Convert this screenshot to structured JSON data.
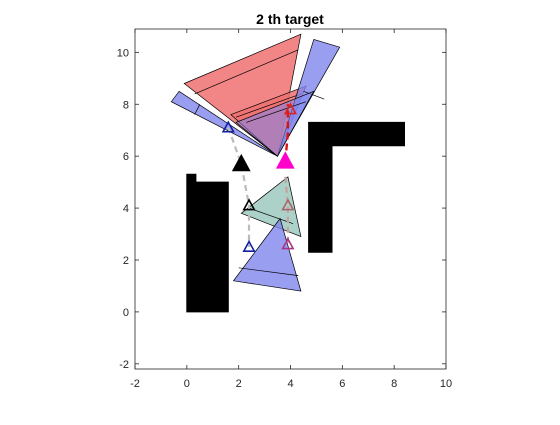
{
  "chart_data": {
    "type": "scatter",
    "title": "2 th target",
    "xlabel": "",
    "ylabel": "",
    "xlim": [
      -2,
      10
    ],
    "ylim": [
      -2.2,
      10.9
    ],
    "xticks": [
      "-2",
      "0",
      "2",
      "4",
      "6",
      "8",
      "10"
    ],
    "yticks": [
      "-2",
      "0",
      "2",
      "4",
      "6",
      "8",
      "10"
    ],
    "xtick_values": [
      -2,
      0,
      2,
      4,
      6,
      8,
      10
    ],
    "ytick_values": [
      -2,
      0,
      2,
      4,
      6,
      8,
      10
    ],
    "grid": false,
    "obstacles": [
      {
        "name": "left-wall",
        "points": [
          [
            0,
            0
          ],
          [
            1.6,
            0
          ],
          [
            1.6,
            5
          ],
          [
            0.35,
            5
          ],
          [
            0.35,
            5.3
          ],
          [
            0,
            5.3
          ]
        ]
      },
      {
        "name": "right-L-vertical",
        "points": [
          [
            4.7,
            2.3
          ],
          [
            5.6,
            2.3
          ],
          [
            5.6,
            7.3
          ],
          [
            4.7,
            7.3
          ]
        ]
      },
      {
        "name": "right-L-horizontal",
        "points": [
          [
            5.6,
            6.4
          ],
          [
            8.4,
            6.4
          ],
          [
            8.4,
            7.3
          ],
          [
            5.6,
            7.3
          ]
        ]
      }
    ],
    "sensor_cones": [
      {
        "name": "red-upper",
        "fill": "#f07070",
        "opacity": 0.85,
        "points": [
          [
            3.5,
            6.0
          ],
          [
            -0.1,
            8.8
          ],
          [
            4.4,
            10.7
          ]
        ],
        "inner": [
          [
            0.3,
            8.4
          ],
          [
            4.3,
            10.1
          ]
        ]
      },
      {
        "name": "red-lower",
        "fill": "#f07070",
        "opacity": 0.85,
        "points": [
          [
            3.5,
            6.0
          ],
          [
            1.7,
            7.6
          ],
          [
            4.6,
            8.7
          ]
        ],
        "inner": [
          [
            1.9,
            7.5
          ],
          [
            4.4,
            8.4
          ]
        ]
      },
      {
        "name": "blue-left-arm",
        "fill": "#7f86ee",
        "opacity": 0.8,
        "points": [
          [
            3.5,
            6.0
          ],
          [
            -0.6,
            8.1
          ],
          [
            -0.3,
            8.5
          ]
        ],
        "inner": [
          [
            0.3,
            7.6
          ],
          [
            0.5,
            8.0
          ]
        ]
      },
      {
        "name": "blue-upper-right",
        "fill": "#7f86ee",
        "opacity": 0.8,
        "points": [
          [
            3.5,
            6.0
          ],
          [
            4.9,
            10.5
          ],
          [
            5.9,
            10.2
          ]
        ],
        "inner": [
          [
            4.5,
            8.5
          ],
          [
            5.3,
            8.2
          ]
        ]
      },
      {
        "name": "blue-red-overlap",
        "fill": "#7f86ee",
        "opacity": 0.55,
        "points": [
          [
            3.5,
            6.0
          ],
          [
            1.9,
            7.3
          ],
          [
            4.9,
            8.5
          ]
        ],
        "inner": [
          [
            2.3,
            7.3
          ],
          [
            4.6,
            8.1
          ]
        ]
      },
      {
        "name": "teal-middle",
        "fill": "#9cc9c0",
        "opacity": 0.85,
        "points": [
          [
            3.9,
            5.2
          ],
          [
            2.1,
            3.8
          ],
          [
            4.4,
            2.9
          ]
        ],
        "inner": [
          [
            2.4,
            4.0
          ],
          [
            4.1,
            3.4
          ]
        ]
      },
      {
        "name": "blue-bottom",
        "fill": "#7f86ee",
        "opacity": 0.8,
        "points": [
          [
            3.6,
            3.6
          ],
          [
            1.8,
            1.2
          ],
          [
            4.4,
            0.8
          ]
        ],
        "inner": [
          [
            2.0,
            1.7
          ],
          [
            4.3,
            1.4
          ]
        ]
      }
    ],
    "path_points": [
      {
        "name": "robot-start",
        "x": 2.1,
        "y": 5.7,
        "marker": "filled-triangle",
        "color": "#000000"
      },
      {
        "name": "waypoint-1",
        "x": 1.6,
        "y": 7.1,
        "marker": "open-triangle",
        "color": "#1020a0"
      },
      {
        "name": "waypoint-2",
        "x": 2.4,
        "y": 4.1,
        "marker": "open-triangle",
        "color": "#000000"
      },
      {
        "name": "waypoint-3",
        "x": 2.4,
        "y": 2.5,
        "marker": "open-triangle",
        "color": "#1020a0"
      },
      {
        "name": "target-point",
        "x": 3.8,
        "y": 5.8,
        "marker": "filled-triangle",
        "color": "#ff00cc"
      },
      {
        "name": "waypoint-4",
        "x": 3.9,
        "y": 4.1,
        "marker": "open-triangle",
        "color": "#aa6666"
      },
      {
        "name": "waypoint-5",
        "x": 3.9,
        "y": 2.6,
        "marker": "open-triangle",
        "color": "#aa3388"
      },
      {
        "name": "waypoint-6",
        "x": 4.0,
        "y": 7.8,
        "marker": "open-triangle",
        "color": "#dd2222"
      }
    ],
    "trajectory_grey": [
      [
        1.6,
        7.1
      ],
      [
        2.1,
        5.7
      ],
      [
        2.4,
        4.1
      ],
      [
        2.4,
        2.5
      ]
    ],
    "trajectory_red": [
      [
        3.8,
        5.8
      ],
      [
        3.9,
        6.9
      ],
      [
        3.9,
        8.0
      ]
    ],
    "trajectory_grey_right": [
      [
        3.8,
        5.2
      ],
      [
        3.9,
        4.1
      ],
      [
        3.9,
        2.6
      ]
    ]
  }
}
